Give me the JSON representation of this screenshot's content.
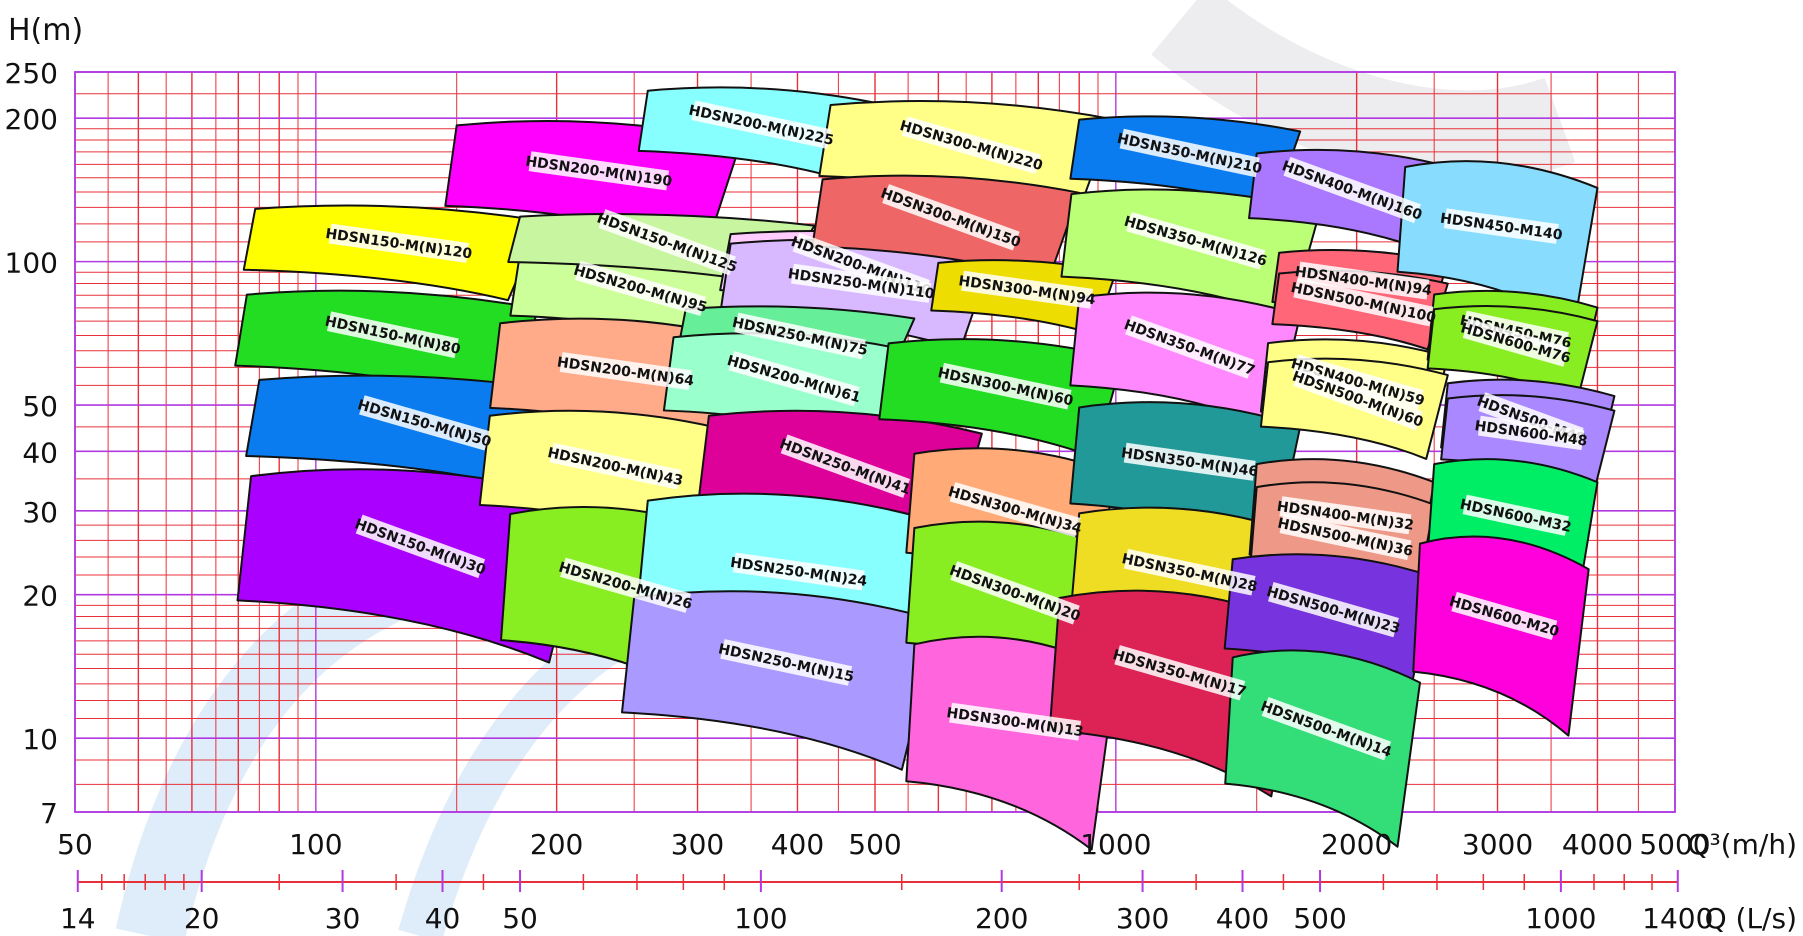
{
  "chart_data": {
    "type": "selection-chart",
    "y_axis": {
      "label": "H(m)",
      "scale": "log",
      "range": [
        7,
        250
      ],
      "ticks": [
        250,
        200,
        100,
        50,
        40,
        30,
        20,
        10,
        7
      ]
    },
    "x_axis": {
      "label": "Q³(m/h)",
      "scale": "log",
      "range": [
        50,
        5000
      ],
      "ticks": [
        50,
        100,
        200,
        300,
        400,
        500,
        1000,
        2000,
        3000,
        4000,
        5000
      ]
    },
    "x_axis2": {
      "label": "Q (L/s)",
      "scale": "log",
      "ticks": [
        14,
        20,
        30,
        40,
        50,
        100,
        200,
        300,
        400,
        500,
        1000,
        1400
      ]
    },
    "series": [
      {
        "name": "HDSN150-M(N)120",
        "color": "#ffff00",
        "region": {
          "q": [
            84,
            192
          ],
          "h": [
            90,
            130
          ]
        }
      },
      {
        "name": "HDSN150-M(N)80",
        "color": "#22dd22",
        "region": {
          "q": [
            82,
            190
          ],
          "h": [
            56,
            86
          ]
        }
      },
      {
        "name": "HDSN150-M(N)50",
        "color": "#0a7cf0",
        "region": {
          "q": [
            85,
            220
          ],
          "h": [
            36,
            57
          ]
        }
      },
      {
        "name": "HDSN150-M(N)30",
        "color": "#aa00ff",
        "region": {
          "q": [
            83,
            220
          ],
          "h": [
            17,
            36
          ]
        }
      },
      {
        "name": "HDSN200-M(N)190",
        "color": "#ff00ff",
        "region": {
          "q": [
            150,
            340
          ],
          "h": [
            120,
            195
          ]
        }
      },
      {
        "name": "HDSN200-M(N)225",
        "color": "#88ffff",
        "region": {
          "q": [
            260,
            500
          ],
          "h": [
            160,
            230
          ]
        }
      },
      {
        "name": "HDSN200-M(N)95",
        "color": "#ccff99",
        "region": {
          "q": [
            180,
            360
          ],
          "h": [
            72,
            105
          ]
        }
      },
      {
        "name": "HDSN150-M(N)125",
        "color": "#c8f5a0",
        "region": {
          "q": [
            180,
            420
          ],
          "h": [
            95,
            125
          ]
        }
      },
      {
        "name": "HDSN200-M(N)64",
        "color": "#ffaa88",
        "region": {
          "q": [
            170,
            350
          ],
          "h": [
            45,
            75
          ]
        }
      },
      {
        "name": "HDSN200-M(N)43",
        "color": "#ffff88",
        "region": {
          "q": [
            165,
            340
          ],
          "h": [
            28,
            48
          ]
        }
      },
      {
        "name": "HDSN200-M(N)26",
        "color": "#88ee22",
        "region": {
          "q": [
            175,
            340
          ],
          "h": [
            14,
            30
          ]
        }
      },
      {
        "name": "HDSN200-M(N)110",
        "color": "#ffccff",
        "region": {
          "q": [
            330,
            700
          ],
          "h": [
            82,
            115
          ]
        }
      },
      {
        "name": "HDSN250-M(N)110",
        "color": "#d8b8ff",
        "region": {
          "q": [
            330,
            700
          ],
          "h": [
            72,
            110
          ]
        }
      },
      {
        "name": "HDSN250-M(N)75",
        "color": "#66ee99",
        "region": {
          "q": [
            290,
            560
          ],
          "h": [
            60,
            80
          ]
        }
      },
      {
        "name": "HDSN200-M(N)61",
        "color": "#99ffcc",
        "region": {
          "q": [
            280,
            560
          ],
          "h": [
            45,
            70
          ]
        }
      },
      {
        "name": "HDSN250-M(N)41",
        "color": "#dd0099",
        "region": {
          "q": [
            310,
            680
          ],
          "h": [
            28,
            48
          ]
        }
      },
      {
        "name": "HDSN250-M(N)24",
        "color": "#88ffff",
        "region": {
          "q": [
            260,
            620
          ],
          "h": [
            15,
            32
          ]
        }
      },
      {
        "name": "HDSN250-M(N)15",
        "color": "#aa99ff",
        "region": {
          "q": [
            250,
            600
          ],
          "h": [
            10,
            20
          ]
        }
      },
      {
        "name": "HDSN300-M(N)220",
        "color": "#ffff88",
        "region": {
          "q": [
            440,
            990
          ],
          "h": [
            140,
            215
          ]
        }
      },
      {
        "name": "HDSN300-M(N)150",
        "color": "#ee6666",
        "region": {
          "q": [
            430,
            900
          ],
          "h": [
            100,
            150
          ]
        }
      },
      {
        "name": "HDSN300-M(N)94",
        "color": "#eedd00",
        "region": {
          "q": [
            600,
            1000
          ],
          "h": [
            75,
            100
          ]
        }
      },
      {
        "name": "HDSN300-M(N)60",
        "color": "#22dd22",
        "region": {
          "q": [
            520,
            1020
          ],
          "h": [
            43,
            68
          ]
        }
      },
      {
        "name": "HDSN300-M(N)34",
        "color": "#ffaa77",
        "region": {
          "q": [
            560,
            1000
          ],
          "h": [
            22,
            40
          ]
        }
      },
      {
        "name": "HDSN300-M(N)20",
        "color": "#88ee22",
        "region": {
          "q": [
            560,
            1000
          ],
          "h": [
            14,
            28
          ]
        }
      },
      {
        "name": "HDSN300-M(N)13",
        "color": "#ff66dd",
        "region": {
          "q": [
            560,
            1000
          ],
          "h": [
            7,
            16
          ]
        }
      },
      {
        "name": "HDSN350-M(N)210",
        "color": "#0a7cf0",
        "region": {
          "q": [
            900,
            1700
          ],
          "h": [
            140,
            200
          ]
        }
      },
      {
        "name": "HDSN350-M(N)126",
        "color": "#bbff77",
        "region": {
          "q": [
            880,
            1800
          ],
          "h": [
            85,
            140
          ]
        }
      },
      {
        "name": "HDSN350-M(N)77",
        "color": "#ff88ff",
        "region": {
          "q": [
            900,
            1700
          ],
          "h": [
            50,
            85
          ]
        }
      },
      {
        "name": "HDSN350-M(N)46",
        "color": "#229999",
        "region": {
          "q": [
            900,
            1700
          ],
          "h": [
            28,
            50
          ]
        }
      },
      {
        "name": "HDSN350-M(N)28",
        "color": "#eedd22",
        "region": {
          "q": [
            900,
            1700
          ],
          "h": [
            16,
            30
          ]
        }
      },
      {
        "name": "HDSN350-M(N)17",
        "color": "#dd2255",
        "region": {
          "q": [
            850,
            1700
          ],
          "h": [
            9,
            20
          ]
        }
      },
      {
        "name": "HDSN400-M(N)160",
        "color": "#aa77ff",
        "region": {
          "q": [
            1500,
            2600
          ],
          "h": [
            115,
            170
          ]
        }
      },
      {
        "name": "HDSN400-M(N)94",
        "color": "#ff6677",
        "region": {
          "q": [
            1600,
            2600
          ],
          "h": [
            78,
            105
          ]
        }
      },
      {
        "name": "HDSN500-M(N)100",
        "color": "#ff6677",
        "region": {
          "q": [
            1600,
            2600
          ],
          "h": [
            70,
            95
          ]
        }
      },
      {
        "name": "HDSN400-M(N)59",
        "color": "#ffff88",
        "region": {
          "q": [
            1550,
            2600
          ],
          "h": [
            45,
            68
          ]
        }
      },
      {
        "name": "HDSN500-M(N)60",
        "color": "#ffff88",
        "region": {
          "q": [
            1550,
            2600
          ],
          "h": [
            42,
            62
          ]
        }
      },
      {
        "name": "HDSN400-M(N)32",
        "color": "#ee9988",
        "region": {
          "q": [
            1500,
            2500
          ],
          "h": [
            22,
            38
          ]
        }
      },
      {
        "name": "HDSN500-M(N)36",
        "color": "#ee9988",
        "region": {
          "q": [
            1500,
            2500
          ],
          "h": [
            20,
            34
          ]
        }
      },
      {
        "name": "HDSN500-M(N)23",
        "color": "#7733dd",
        "region": {
          "q": [
            1400,
            2500
          ],
          "h": [
            14,
            24
          ]
        }
      },
      {
        "name": "HDSN500-M(N)14",
        "color": "#33dd77",
        "region": {
          "q": [
            1400,
            2400
          ],
          "h": [
            7,
            15
          ]
        }
      },
      {
        "name": "HDSN450-M140",
        "color": "#88ddff",
        "region": {
          "q": [
            2300,
            4000
          ],
          "h": [
            85,
            160
          ]
        }
      },
      {
        "name": "HDSN450-M76",
        "color": "#88ee22",
        "region": {
          "q": [
            2500,
            4000
          ],
          "h": [
            58,
            86
          ]
        }
      },
      {
        "name": "HDSN600-M76",
        "color": "#88ee22",
        "region": {
          "q": [
            2500,
            4000
          ],
          "h": [
            56,
            80
          ]
        }
      },
      {
        "name": "HDSN500-M48",
        "color": "#aa88ff",
        "region": {
          "q": [
            2600,
            4200
          ],
          "h": [
            38,
            56
          ]
        }
      },
      {
        "name": "HDSN600-M48",
        "color": "#aa88ff",
        "region": {
          "q": [
            2600,
            4200
          ],
          "h": [
            36,
            52
          ]
        }
      },
      {
        "name": "HDSN600-M32",
        "color": "#00ee66",
        "region": {
          "q": [
            2500,
            4000
          ],
          "h": [
            22,
            38
          ]
        }
      },
      {
        "name": "HDSN600-M20",
        "color": "#ff00dd",
        "region": {
          "q": [
            2400,
            3900
          ],
          "h": [
            12,
            26
          ]
        }
      }
    ]
  }
}
